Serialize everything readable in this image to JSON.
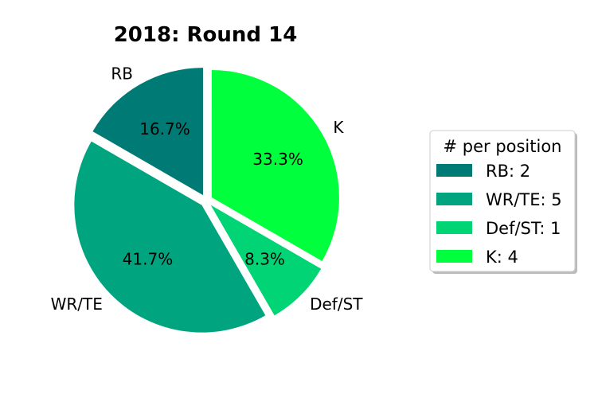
{
  "chart_data": {
    "type": "pie",
    "title": "2018: Round 14",
    "categories": [
      "RB",
      "WR/TE",
      "Def/ST",
      "K"
    ],
    "values": [
      2,
      5,
      1,
      4
    ],
    "percent_labels": [
      "16.7%",
      "41.7%",
      "8.3%",
      "33.3%"
    ],
    "colors": [
      "#007a75",
      "#00a57f",
      "#00d474",
      "#00ff3c"
    ],
    "start_angle_deg": 90,
    "direction": "counterclockwise",
    "exploded": true,
    "legend": {
      "title": "# per position",
      "entries": [
        "RB: 2",
        "WR/TE: 5",
        "Def/ST: 1",
        "K: 4"
      ],
      "placement": "right"
    }
  }
}
